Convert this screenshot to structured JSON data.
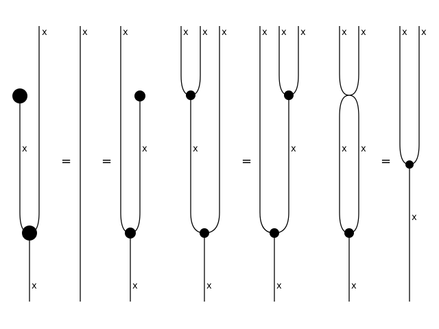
{
  "wire_label": "x",
  "equals_sign": "=",
  "colors": {
    "ink": "#000000",
    "background": "#ffffff"
  }
}
